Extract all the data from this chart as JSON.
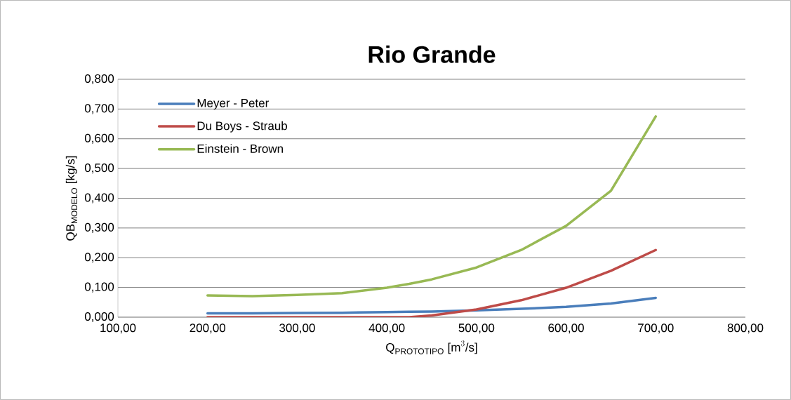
{
  "chart_data": {
    "type": "line",
    "title": "Rio Grande",
    "xlabel": "\\text{Q}_{\\text{PROTOTIPO}}\\text{ [m}^{3}\\text{/s]}",
    "ylabel": "\\text{QB}_{\\text{MODELO}}\\text{ [kg/s]}",
    "x": [
      200,
      250,
      300,
      350,
      400,
      425,
      450,
      500,
      550,
      600,
      650,
      700
    ],
    "series": [
      {
        "name": "Meyer - Peter",
        "color": "#4a7ebb",
        "values": [
          0.013,
          0.013,
          0.014,
          0.015,
          0.017,
          0.018,
          0.019,
          0.023,
          0.028,
          0.035,
          0.046,
          0.065
        ]
      },
      {
        "name": "Du Boys - Straub",
        "color": "#be4b48",
        "values": [
          0.0,
          0.0,
          0.0,
          0.0,
          0.0,
          0.0,
          0.006,
          0.026,
          0.057,
          0.099,
          0.156,
          0.226
        ]
      },
      {
        "name": "Einstein - Brown",
        "color": "#98b954",
        "values": [
          0.073,
          0.071,
          0.075,
          0.081,
          0.099,
          0.112,
          0.127,
          0.167,
          0.226,
          0.307,
          0.425,
          0.675
        ]
      }
    ],
    "xlim": [
      100,
      800
    ],
    "ylim": [
      0,
      0.8
    ],
    "xticks": [
      {
        "value": 100,
        "label": "100,00"
      },
      {
        "value": 200,
        "label": "200,00"
      },
      {
        "value": 300,
        "label": "300,00"
      },
      {
        "value": 400,
        "label": "400,00"
      },
      {
        "value": 500,
        "label": "500,00"
      },
      {
        "value": 600,
        "label": "600,00"
      },
      {
        "value": 700,
        "label": "700,00"
      },
      {
        "value": 800,
        "label": "800,00"
      }
    ],
    "yticks": [
      {
        "value": 0,
        "label": "0,000"
      },
      {
        "value": 0.1,
        "label": "0,100"
      },
      {
        "value": 0.2,
        "label": "0,200"
      },
      {
        "value": 0.3,
        "label": "0,300"
      },
      {
        "value": 0.4,
        "label": "0,400"
      },
      {
        "value": 0.5,
        "label": "0,500"
      },
      {
        "value": 0.6,
        "label": "0,600"
      },
      {
        "value": 0.7,
        "label": "0,700"
      },
      {
        "value": 0.8,
        "label": "0,800"
      }
    ],
    "grid": "y",
    "legend": "top left",
    "marker": "none",
    "line_style": "solid"
  }
}
